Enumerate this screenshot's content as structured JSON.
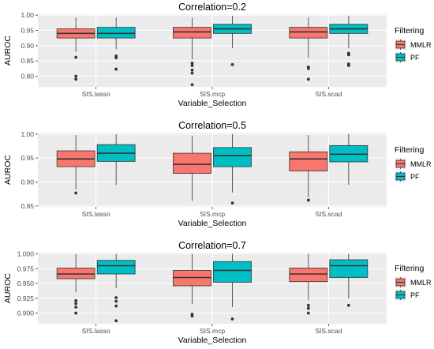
{
  "chart_data": [
    {
      "type": "box",
      "title": "Correlation=0.2",
      "xlabel": "Variable_Selection",
      "ylabel": "AUROC",
      "categories": [
        "SIS.lasso",
        "SIS.mcp",
        "SIS.scad"
      ],
      "ylim": [
        0.765,
        1.003
      ],
      "yticks": [
        0.8,
        0.85,
        0.9,
        0.95,
        1.0
      ],
      "ytick_labels": [
        "0.80",
        "0.85",
        "0.90",
        "0.95",
        "1.00"
      ],
      "legend": {
        "title": "Filtering",
        "position": "right"
      },
      "series": [
        {
          "name": "MMLR",
          "color": "#F8766D",
          "boxes": [
            {
              "min": 0.88,
              "q1": 0.925,
              "median": 0.94,
              "q3": 0.955,
              "max": 0.992,
              "outliers": [
                0.862,
                0.8,
                0.79
              ]
            },
            {
              "min": 0.855,
              "q1": 0.925,
              "median": 0.945,
              "q3": 0.96,
              "max": 0.992,
              "outliers": [
                0.843,
                0.835,
                0.82,
                0.81,
                0.772
              ]
            },
            {
              "min": 0.86,
              "q1": 0.925,
              "median": 0.945,
              "q3": 0.96,
              "max": 0.992,
              "outliers": [
                0.83,
                0.825,
                0.79
              ]
            }
          ]
        },
        {
          "name": "PF",
          "color": "#00BFC4",
          "boxes": [
            {
              "min": 0.888,
              "q1": 0.925,
              "median": 0.94,
              "q3": 0.96,
              "max": 0.992,
              "outliers": [
                0.866,
                0.86,
                0.823
              ]
            },
            {
              "min": 0.892,
              "q1": 0.94,
              "median": 0.955,
              "q3": 0.97,
              "max": 0.998,
              "outliers": [
                0.838
              ]
            },
            {
              "min": 0.892,
              "q1": 0.94,
              "median": 0.955,
              "q3": 0.97,
              "max": 0.998,
              "outliers": [
                0.875,
                0.87,
                0.84,
                0.835
              ]
            }
          ]
        }
      ]
    },
    {
      "type": "box",
      "title": "Correlation=0.5",
      "xlabel": "Variable_Selection",
      "ylabel": "AUROC",
      "categories": [
        "SIS.lasso",
        "SIS.mcp",
        "SIS.scad"
      ],
      "ylim": [
        0.848,
        1.003
      ],
      "yticks": [
        0.85,
        0.9,
        0.95,
        1.0
      ],
      "ytick_labels": [
        "0.85",
        "0.90",
        "0.95",
        "1.00"
      ],
      "legend": {
        "title": "Filtering",
        "position": "right"
      },
      "series": [
        {
          "name": "MMLR",
          "color": "#F8766D",
          "boxes": [
            {
              "min": 0.885,
              "q1": 0.932,
              "median": 0.948,
              "q3": 0.965,
              "max": 0.998,
              "outliers": [
                0.877
              ]
            },
            {
              "min": 0.86,
              "q1": 0.918,
              "median": 0.937,
              "q3": 0.96,
              "max": 0.996,
              "outliers": []
            },
            {
              "min": 0.868,
              "q1": 0.923,
              "median": 0.948,
              "q3": 0.963,
              "max": 0.998,
              "outliers": [
                0.862
              ]
            }
          ]
        },
        {
          "name": "PF",
          "color": "#00BFC4",
          "boxes": [
            {
              "min": 0.894,
              "q1": 0.943,
              "median": 0.96,
              "q3": 0.978,
              "max": 1.0,
              "outliers": []
            },
            {
              "min": 0.878,
              "q1": 0.932,
              "median": 0.955,
              "q3": 0.972,
              "max": 1.0,
              "outliers": [
                0.856
              ]
            },
            {
              "min": 0.894,
              "q1": 0.942,
              "median": 0.958,
              "q3": 0.976,
              "max": 1.0,
              "outliers": []
            }
          ]
        }
      ]
    },
    {
      "type": "box",
      "title": "Correlation=0.7",
      "xlabel": "Variable_Selection",
      "ylabel": "AUROC",
      "categories": [
        "SIS.lasso",
        "SIS.mcp",
        "SIS.scad"
      ],
      "ylim": [
        0.882,
        1.002
      ],
      "yticks": [
        0.9,
        0.925,
        0.95,
        0.975,
        1.0
      ],
      "ytick_labels": [
        "0.900",
        "0.925",
        "0.950",
        "0.975",
        "1.000"
      ],
      "legend": {
        "title": "Filtering",
        "position": "right"
      },
      "series": [
        {
          "name": "MMLR",
          "color": "#F8766D",
          "boxes": [
            {
              "min": 0.935,
              "q1": 0.958,
              "median": 0.966,
              "q3": 0.976,
              "max": 1.0,
              "outliers": [
                0.921,
                0.916,
                0.91,
                0.9
              ]
            },
            {
              "min": 0.915,
              "q1": 0.946,
              "median": 0.96,
              "q3": 0.972,
              "max": 1.0,
              "outliers": [
                0.898,
                0.895
              ]
            },
            {
              "min": 0.922,
              "q1": 0.953,
              "median": 0.966,
              "q3": 0.976,
              "max": 1.0,
              "outliers": [
                0.913,
                0.908,
                0.9
              ]
            }
          ]
        },
        {
          "name": "PF",
          "color": "#00BFC4",
          "boxes": [
            {
              "min": 0.942,
              "q1": 0.966,
              "median": 0.98,
              "q3": 0.989,
              "max": 1.0,
              "outliers": [
                0.926,
                0.92,
                0.912,
                0.887
              ]
            },
            {
              "min": 0.91,
              "q1": 0.952,
              "median": 0.972,
              "q3": 0.987,
              "max": 1.0,
              "outliers": [
                0.89
              ]
            },
            {
              "min": 0.925,
              "q1": 0.96,
              "median": 0.98,
              "q3": 0.99,
              "max": 1.0,
              "outliers": [
                0.913
              ]
            }
          ]
        }
      ]
    }
  ]
}
